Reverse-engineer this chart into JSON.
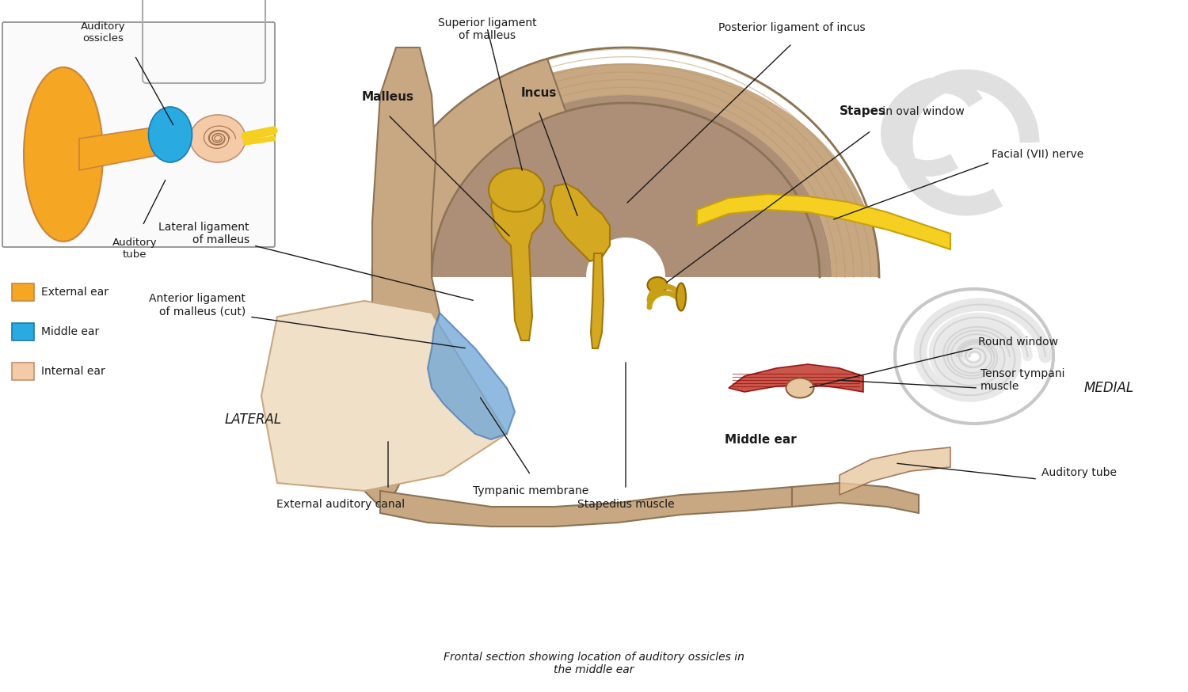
{
  "title": "Middle ear anatomy",
  "background_color": "#ffffff",
  "figsize": [
    15.0,
    8.74
  ],
  "dpi": 100,
  "labels": {
    "auditory_ossicles": "Auditory\nossicles",
    "auditory_tube_inset": "Auditory\ntube",
    "external_ear": "External ear",
    "middle_ear": "Middle ear",
    "internal_ear": "Internal ear",
    "superior_ligament": "Superior ligament\nof malleus",
    "malleus": "Malleus",
    "incus": "Incus",
    "stapes": "Stapes",
    "stapes_suffix": " in oval window",
    "posterior_ligament": "Posterior ligament of incus",
    "facial_nerve": "Facial (VII) nerve",
    "lateral_ligament": "Lateral ligament\nof malleus",
    "anterior_ligament": "Anterior ligament\nof malleus (cut)",
    "round_window": "Round window",
    "tensor_tympani": "Tensor tympani\nmuscle",
    "medial": "MEDIAL",
    "lateral": "LATERAL",
    "auditory_tube_main": "Auditory tube",
    "tympanic_membrane": "Tympanic membrane",
    "external_auditory_canal": "External auditory canal",
    "stapedius_muscle": "Stapedius muscle",
    "middle_ear_main": "Middle ear",
    "caption": "Frontal section showing location of auditory ossicles in\nthe middle ear"
  },
  "legend_colors": {
    "external_ear": "#F5A623",
    "middle_ear": "#29ABE2",
    "internal_ear": "#F5CBA7"
  },
  "text_color": "#1a1a1a",
  "line_color": "#1a1a1a"
}
